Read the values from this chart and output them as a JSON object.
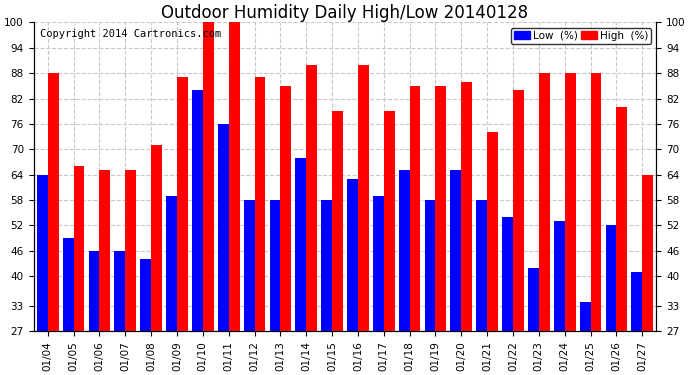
{
  "title": "Outdoor Humidity Daily High/Low 20140128",
  "copyright": "Copyright 2014 Cartronics.com",
  "dates": [
    "01/04",
    "01/05",
    "01/06",
    "01/07",
    "01/08",
    "01/09",
    "01/10",
    "01/11",
    "01/12",
    "01/13",
    "01/14",
    "01/15",
    "01/16",
    "01/17",
    "01/18",
    "01/19",
    "01/20",
    "01/21",
    "01/22",
    "01/23",
    "01/24",
    "01/25",
    "01/26",
    "01/27"
  ],
  "high_values": [
    88,
    66,
    65,
    65,
    71,
    87,
    100,
    100,
    87,
    85,
    90,
    79,
    90,
    79,
    85,
    85,
    86,
    74,
    84,
    88,
    88,
    88,
    80,
    64
  ],
  "low_values": [
    64,
    49,
    46,
    46,
    44,
    59,
    84,
    76,
    58,
    58,
    68,
    58,
    63,
    59,
    65,
    58,
    65,
    58,
    54,
    42,
    53,
    34,
    52,
    41
  ],
  "high_color": "#ff0000",
  "low_color": "#0000ff",
  "bg_color": "#ffffff",
  "grid_color": "#c8c8c8",
  "ymin": 27,
  "ymax": 100,
  "yticks": [
    27,
    33,
    40,
    46,
    52,
    58,
    64,
    70,
    76,
    82,
    88,
    94,
    100
  ],
  "bar_width": 0.42,
  "title_fontsize": 12,
  "tick_fontsize": 7.5,
  "copyright_fontsize": 7.5,
  "legend_fontsize": 7.5
}
